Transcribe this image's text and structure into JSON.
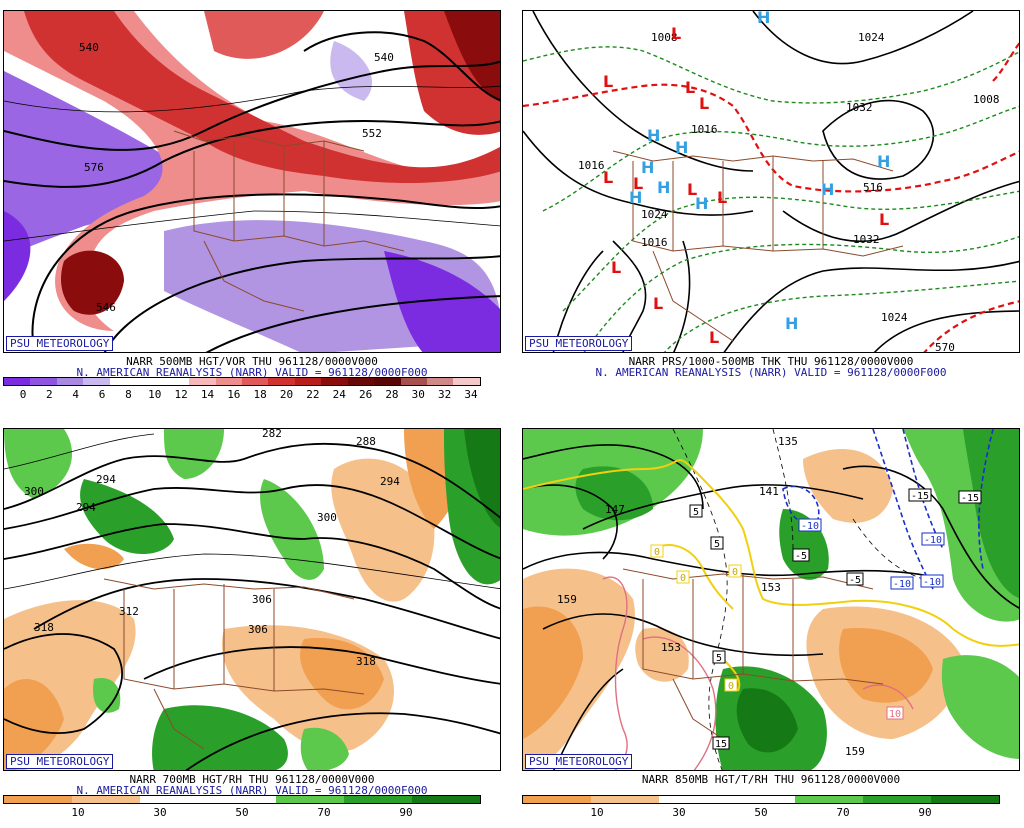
{
  "badge_text": "PSU METEOROLOGY",
  "reanalysis_line": "N. AMERICAN REANALYSIS (NARR) VALID = 961128/0000F000",
  "panels": {
    "top_left": {
      "title": "NARR 500MB HGT/VOR THU 961128/0000V000",
      "colorbar_ticks": [
        "0",
        "2",
        "4",
        "6",
        "8",
        "10",
        "12",
        "14",
        "16",
        "18",
        "20",
        "22",
        "24",
        "26",
        "28",
        "30",
        "32",
        "34"
      ],
      "colorbar_colors": [
        "#7b2be0",
        "#8f55e0",
        "#a98ae0",
        "#c9b9ef",
        "#ffffff",
        "#ffffff",
        "#ffffff",
        "#f6b8b8",
        "#ef8c8c",
        "#e05a5a",
        "#d03232",
        "#b81e1e",
        "#8a0c0c",
        "#6a0808",
        "#5a0606",
        "#a85050",
        "#d08888",
        "#f2c8c8"
      ],
      "contour_labels": [
        "540",
        "540",
        "552",
        "576",
        "546"
      ]
    },
    "top_right": {
      "title": "NARR PRS/1000-500MB THK THU 961128/0000V000",
      "reanalysis_line": "N. AMERICAN REANALYSIS (NARR) VALID = 961128/0000F000",
      "contour_labels": [
        "1024",
        "1032",
        "1016",
        "1024",
        "1016",
        "1032",
        "1024",
        "1008",
        "1008",
        "1016",
        "516",
        "570"
      ],
      "highs": [
        "H",
        "H",
        "H",
        "H",
        "H",
        "H",
        "H",
        "H",
        "H",
        "H"
      ],
      "lows": [
        "L",
        "L",
        "L",
        "L",
        "L",
        "L",
        "L",
        "L",
        "L",
        "L",
        "L",
        "L"
      ]
    },
    "bottom_left": {
      "title": "NARR 700MB HGT/RH THU 961128/0000V000",
      "colorbar_ticks": [
        "10",
        "30",
        "50",
        "70",
        "90"
      ],
      "colorbar_colors": [
        "#f0a050",
        "#f6c08a",
        "#ffffff",
        "#ffffff",
        "#5cc84c",
        "#2aa02a",
        "#157a15"
      ],
      "contour_labels": [
        "282",
        "288",
        "294",
        "294",
        "300",
        "306",
        "306",
        "312",
        "312",
        "318",
        "318",
        "300"
      ]
    },
    "bottom_right": {
      "title": "NARR 850MB HGT/T/RH THU 961128/0000V000",
      "colorbar_ticks": [
        "10",
        "30",
        "50",
        "70",
        "90"
      ],
      "colorbar_colors": [
        "#f0a050",
        "#f6c08a",
        "#ffffff",
        "#ffffff",
        "#5cc84c",
        "#2aa02a",
        "#157a15"
      ],
      "contour_labels": [
        "135",
        "141",
        "147",
        "153",
        "153",
        "159",
        "159"
      ],
      "temp_boxes": [
        "5",
        "5",
        "-5",
        "-5",
        "-10",
        "-10",
        "-10",
        "-10",
        "-15",
        "-15",
        "0",
        "0",
        "0",
        "0",
        "5",
        "10",
        "15"
      ]
    }
  }
}
